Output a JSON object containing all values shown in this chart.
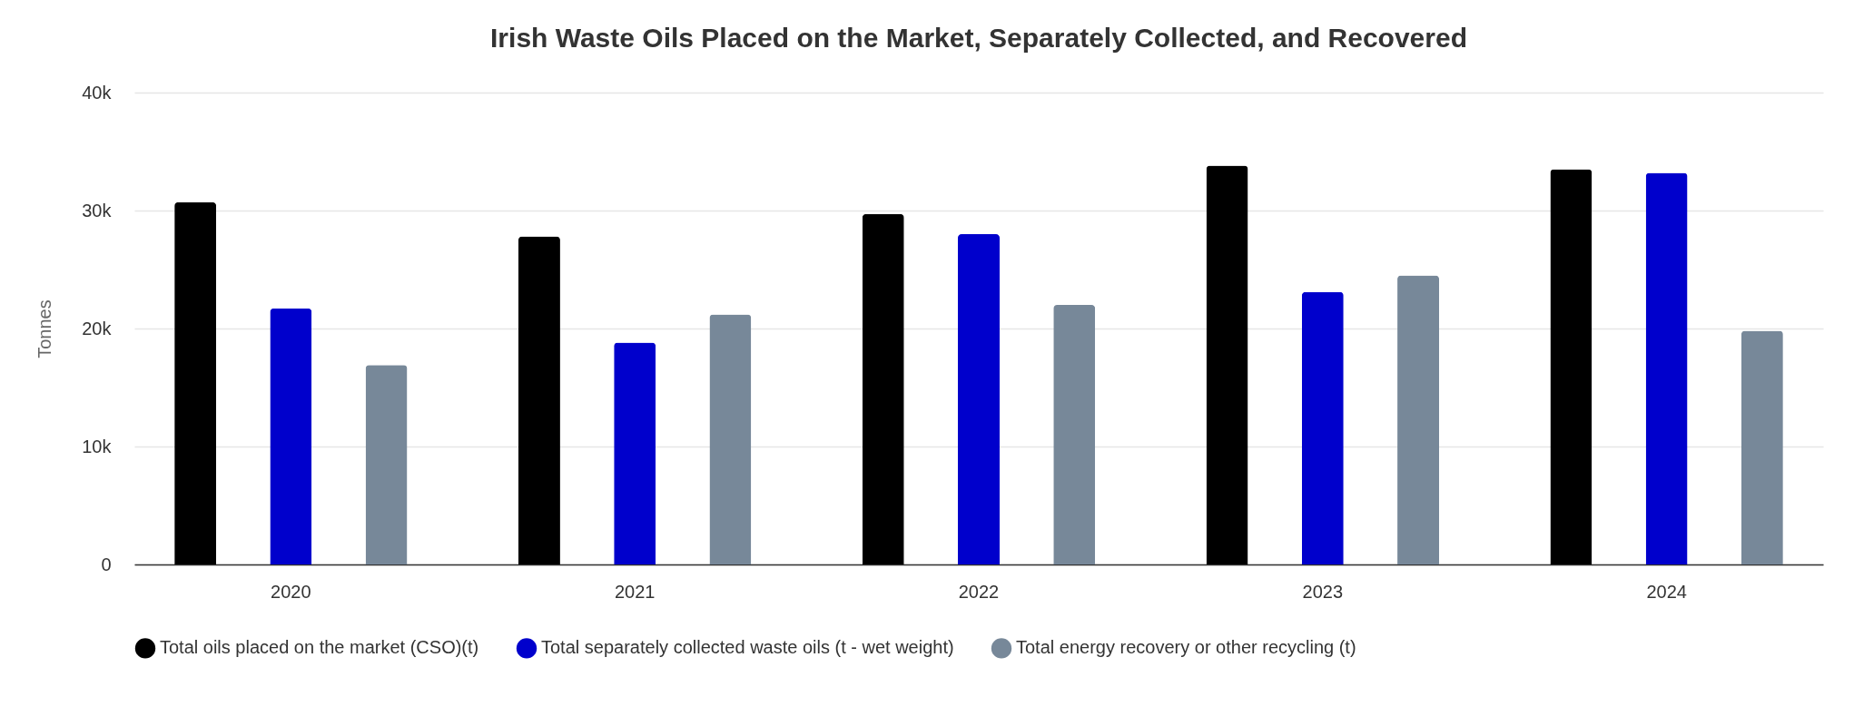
{
  "chart_data": {
    "type": "bar",
    "title": "Irish Waste Oils Placed on the Market, Separately Collected, and Recovered",
    "ylabel": "Tonnes",
    "categories": [
      "2020",
      "2021",
      "2022",
      "2023",
      "2024"
    ],
    "series": [
      {
        "name": "Total oils placed on the market (CSO)(t)",
        "color": "#000000",
        "values": [
          30700,
          27800,
          29700,
          33800,
          33500
        ]
      },
      {
        "name": "Total separately collected waste oils (t - wet weight)",
        "color": "#0000cc",
        "values": [
          21700,
          18800,
          28000,
          23100,
          33200
        ]
      },
      {
        "name": "Total energy recovery or other recycling (t)",
        "color": "#778899",
        "values": [
          16900,
          21200,
          22000,
          24500,
          19800
        ]
      }
    ],
    "ylim": [
      0,
      40000
    ],
    "yticks": [
      {
        "value": 0,
        "label": "0"
      },
      {
        "value": 10000,
        "label": "10k"
      },
      {
        "value": 20000,
        "label": "20k"
      },
      {
        "value": 30000,
        "label": "30k"
      },
      {
        "value": 40000,
        "label": "40k"
      }
    ],
    "grid": "y",
    "legend": "bottom"
  }
}
